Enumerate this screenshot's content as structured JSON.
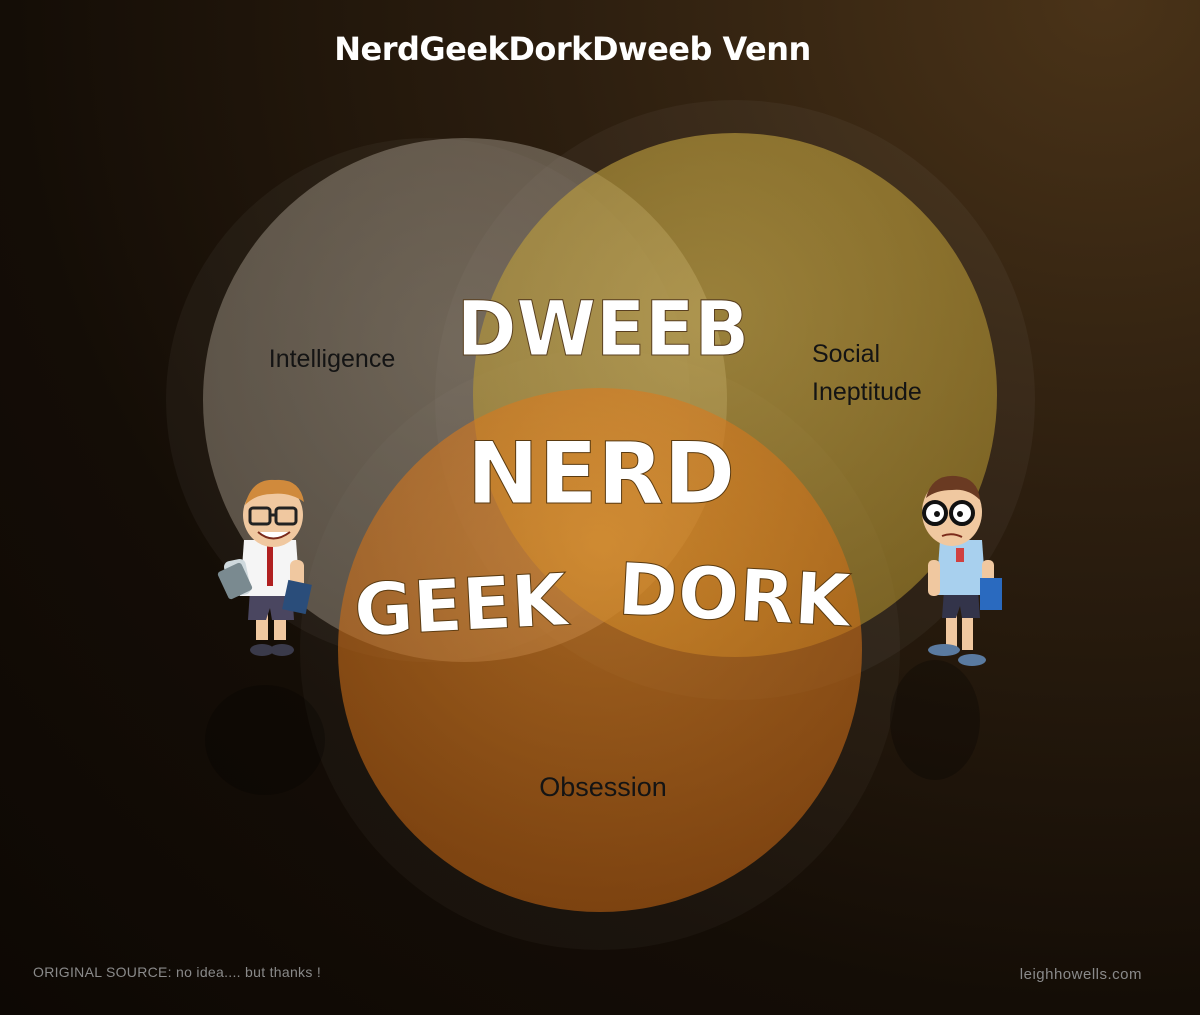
{
  "title": "NerdGeekDorkDweeb Venn",
  "sets": {
    "intelligence": "Intelligence",
    "social_line1": "Social",
    "social_line2": "Ineptitude",
    "obsession": "Obsession"
  },
  "overlaps": {
    "dweeb": "DWEEB",
    "nerd": "NERD",
    "geek": "GEEK",
    "dork": "DORK"
  },
  "colors": {
    "intelligence_circle": "#9a8f80",
    "social_circle": "#c4a23e",
    "obsession_circle": "#d97b1f",
    "accent_text": "#ffffff"
  },
  "footer": {
    "source": "ORIGINAL SOURCE:  no idea.... but thanks !",
    "credit": "leighhowells.com"
  }
}
